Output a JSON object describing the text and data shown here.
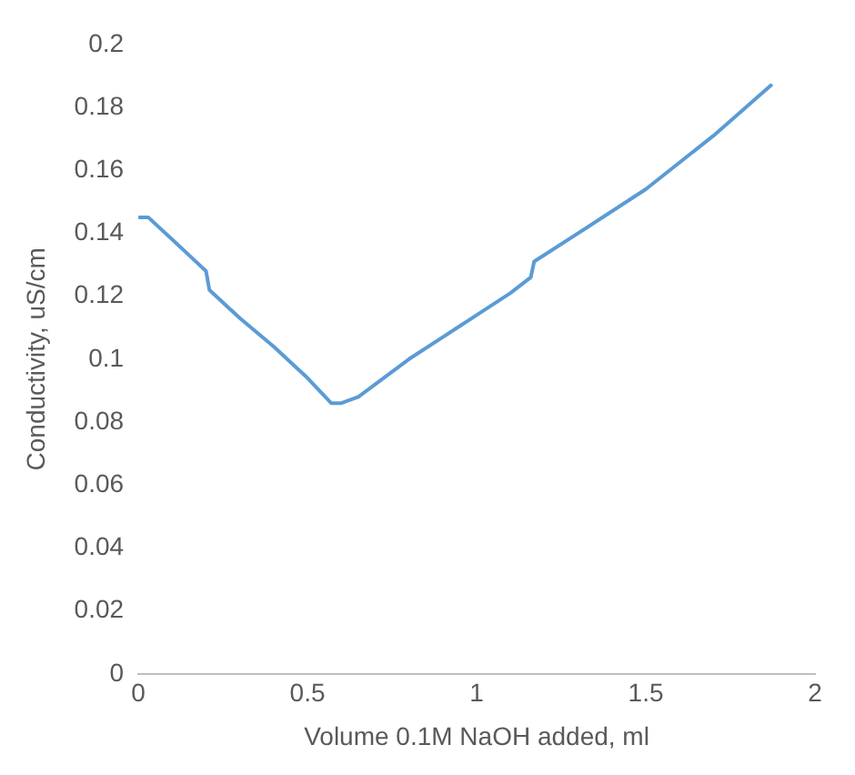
{
  "chart_data": {
    "type": "line",
    "xlabel": "Volume 0.1M NaOH added, ml",
    "ylabel": "Conductivity, uS/cm",
    "xlim": [
      0,
      2
    ],
    "xticks": [
      0,
      0.5,
      1,
      1.5,
      2
    ],
    "ylim": [
      0,
      0.2
    ],
    "yticks": [
      0,
      0.02,
      0.04,
      0.06,
      0.08,
      0.1,
      0.12,
      0.14,
      0.16,
      0.18,
      0.2
    ],
    "grid": false,
    "legend": false,
    "marker": "none",
    "line_style": "solid",
    "series": [
      {
        "color": "#5b9bd5",
        "x": [
          0,
          0.03,
          0.1,
          0.15,
          0.2,
          0.21,
          0.3,
          0.4,
          0.5,
          0.57,
          0.6,
          0.65,
          0.8,
          0.9,
          1.0,
          1.1,
          1.16,
          1.17,
          1.3,
          1.5,
          1.7,
          1.87
        ],
        "values": [
          0.145,
          0.145,
          0.138,
          0.133,
          0.128,
          0.122,
          0.113,
          0.104,
          0.094,
          0.086,
          0.086,
          0.088,
          0.1,
          0.107,
          0.114,
          0.121,
          0.126,
          0.131,
          0.14,
          0.154,
          0.171,
          0.187
        ]
      }
    ]
  }
}
